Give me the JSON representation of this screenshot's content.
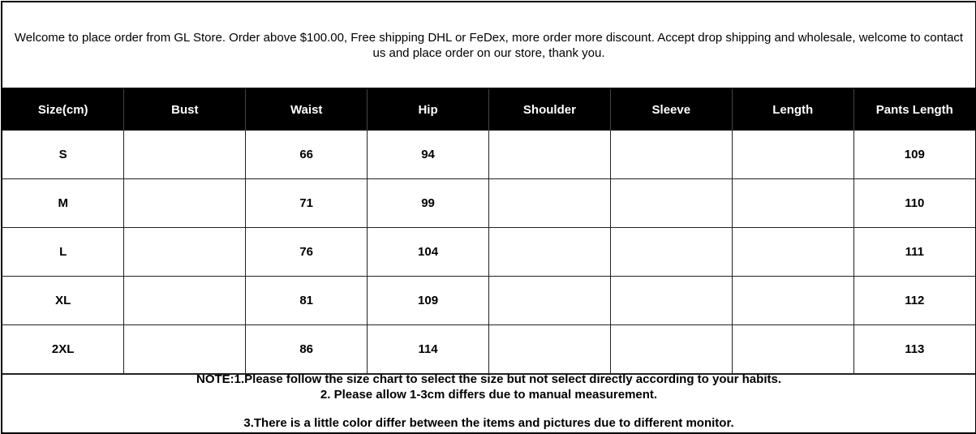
{
  "intro_text": "Welcome to place order from GL Store. Order above $100.00, Free shipping DHL or FeDex, more order more discount. Accept drop shipping and wholesale, welcome to contact us and place order on our store, thank you.",
  "table": {
    "headers": [
      "Size(cm)",
      "Bust",
      "Waist",
      "Hip",
      "Shoulder",
      "Sleeve",
      "Length",
      "Pants Length"
    ],
    "rows": [
      [
        "S",
        "",
        "66",
        "94",
        "",
        "",
        "",
        "109"
      ],
      [
        "M",
        "",
        "71",
        "99",
        "",
        "",
        "",
        "110"
      ],
      [
        "L",
        "",
        "76",
        "104",
        "",
        "",
        "",
        "111"
      ],
      [
        "XL",
        "",
        "81",
        "109",
        "",
        "",
        "",
        "112"
      ],
      [
        "2XL",
        "",
        "86",
        "114",
        "",
        "",
        "",
        "113"
      ]
    ]
  },
  "notes": [
    "NOTE:1.Please follow the size chart to select the size but not select directly according to your habits.",
    "2. Please allow 1-3cm differs due to manual measurement.",
    "3.There is a little color differ between the items and pictures due to different monitor."
  ],
  "colors": {
    "header_bg": "#000000",
    "header_text": "#ffffff"
  }
}
